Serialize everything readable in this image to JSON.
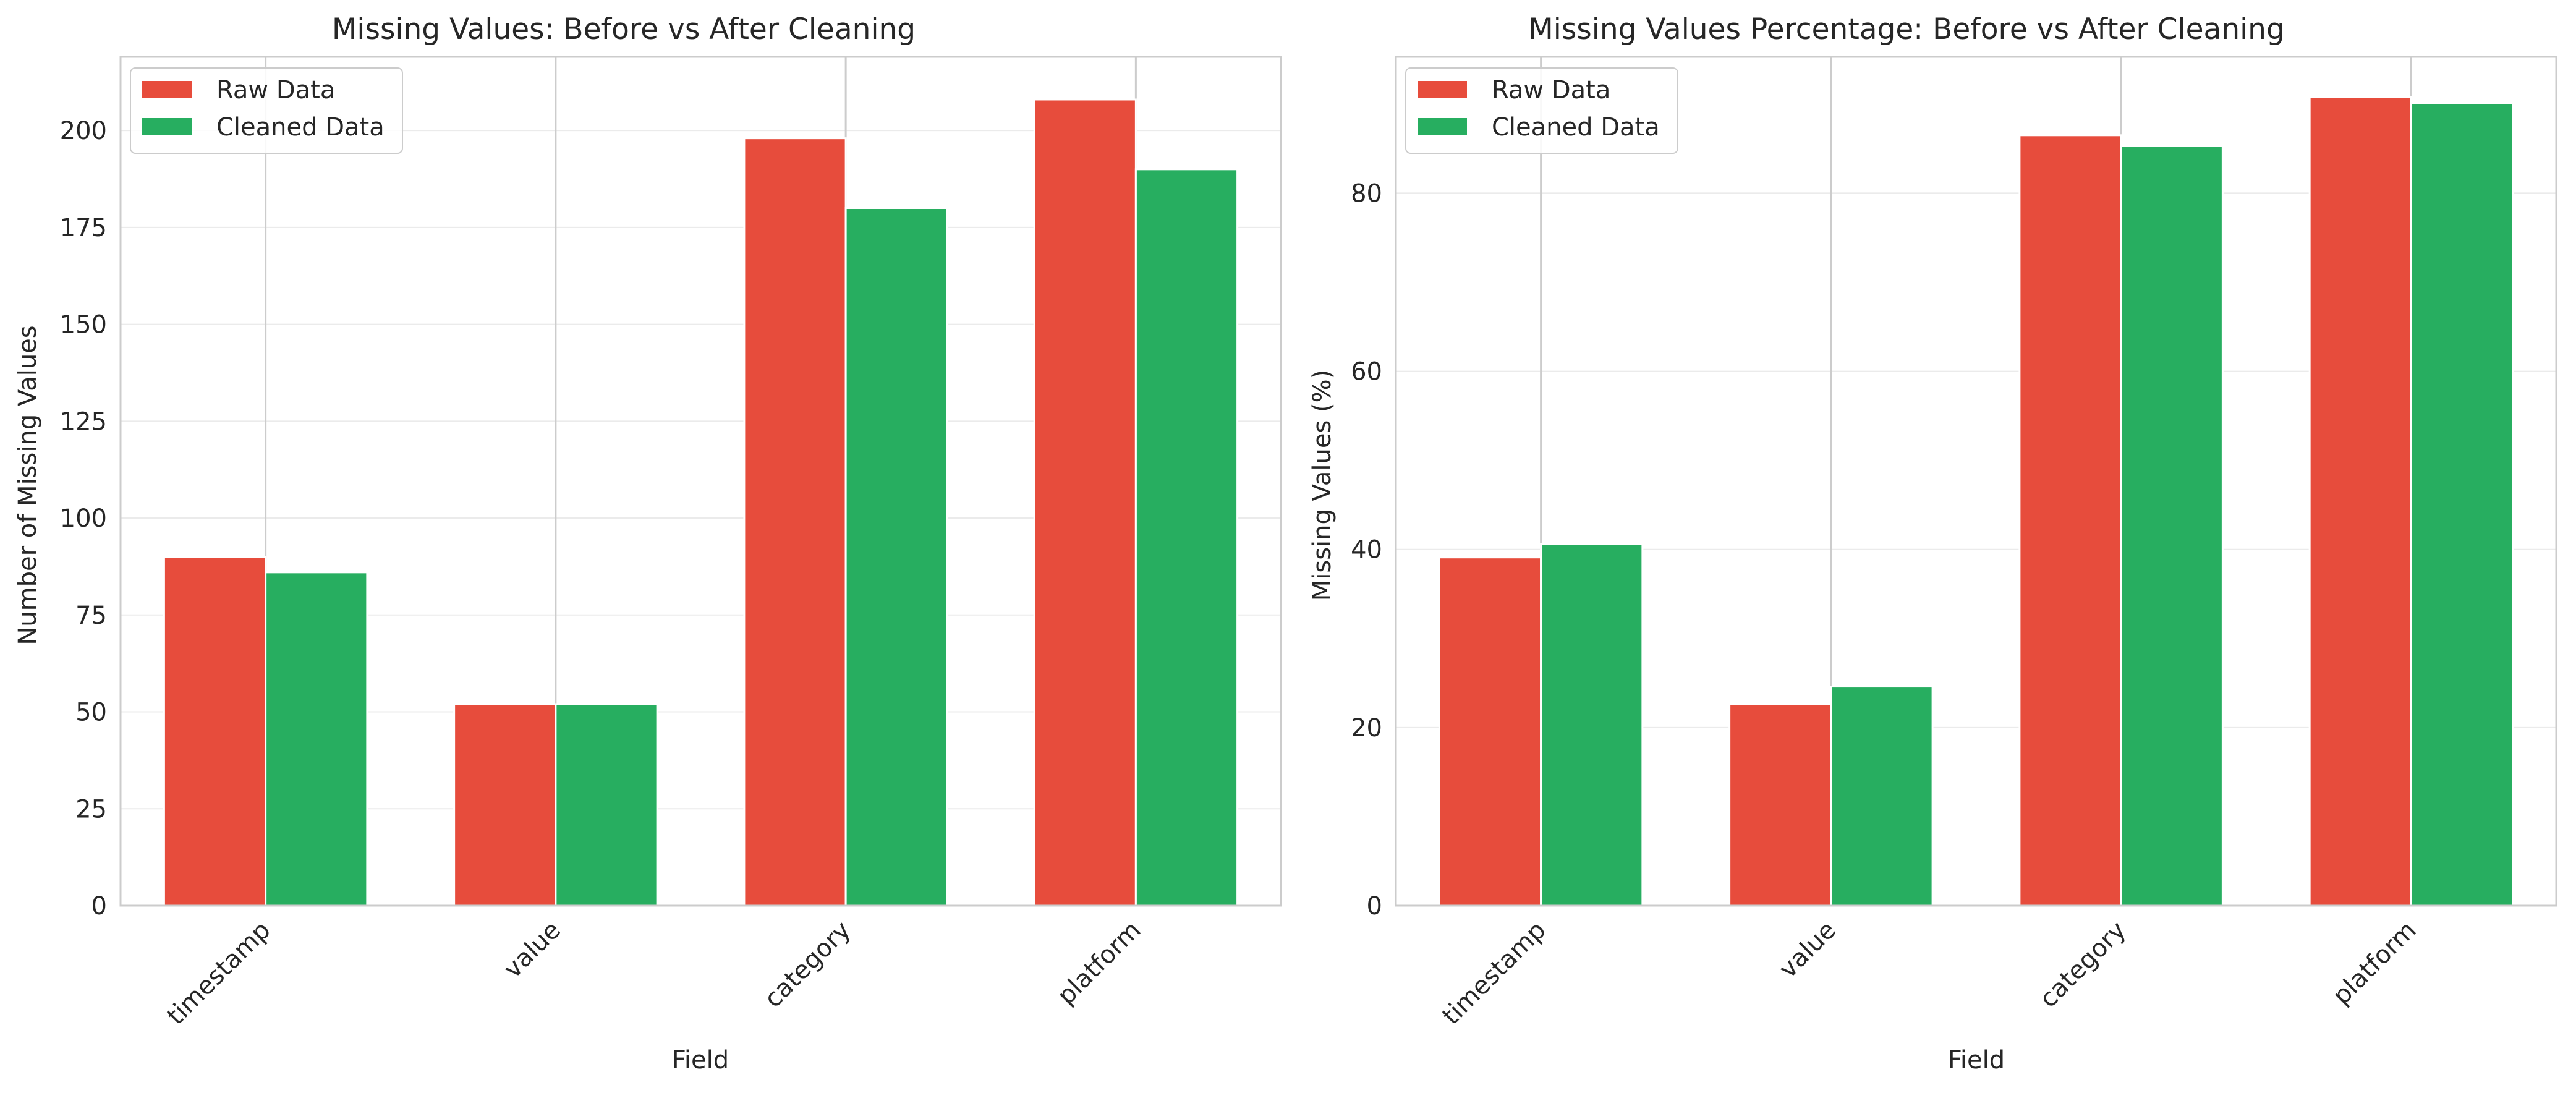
{
  "colors": {
    "raw": "#e74c3c",
    "cleaned": "#27ae60",
    "grid": "#ebebeb",
    "frame": "#cccccc",
    "text": "#262626"
  },
  "chart_data": [
    {
      "type": "bar",
      "title": "Missing Values: Before vs After Cleaning",
      "xlabel": "Field",
      "ylabel": "Number of Missing Values",
      "categories": [
        "timestamp",
        "value",
        "category",
        "platform"
      ],
      "series": [
        {
          "name": "Raw Data",
          "color": "#e74c3c",
          "values": [
            90,
            52,
            198,
            208
          ]
        },
        {
          "name": "Cleaned Data",
          "color": "#27ae60",
          "values": [
            86,
            52,
            180,
            190
          ]
        }
      ],
      "ylim": [
        0,
        219
      ],
      "yticks": [
        0,
        25,
        50,
        75,
        100,
        125,
        150,
        175,
        200
      ],
      "grid": true,
      "legend": "upper-left"
    },
    {
      "type": "bar",
      "title": "Missing Values Percentage: Before vs After Cleaning",
      "xlabel": "Field",
      "ylabel": "Missing Values (%)",
      "categories": [
        "timestamp",
        "value",
        "category",
        "platform"
      ],
      "series": [
        {
          "name": "Raw Data",
          "color": "#e74c3c",
          "values": [
            39.1,
            22.6,
            86.5,
            90.8
          ]
        },
        {
          "name": "Cleaned Data",
          "color": "#27ae60",
          "values": [
            40.6,
            24.6,
            85.3,
            90.1
          ]
        }
      ],
      "ylim": [
        0,
        95.3
      ],
      "yticks": [
        0,
        20,
        40,
        60,
        80
      ],
      "grid": true,
      "legend": "upper-left"
    }
  ]
}
